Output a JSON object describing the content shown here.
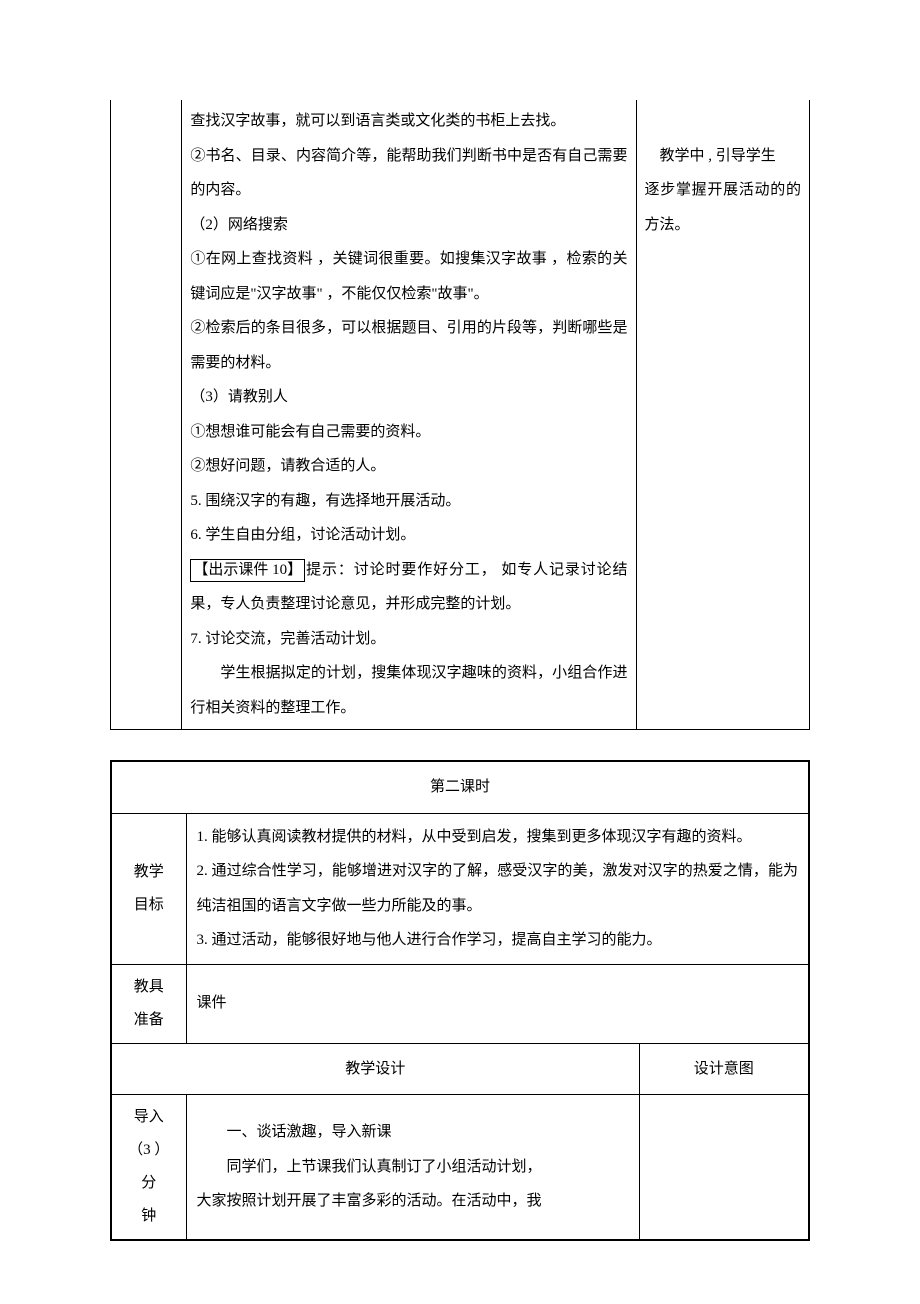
{
  "top_table": {
    "mid_col": {
      "lines": [
        "查找汉字故事，就可以到语言类或文化类的书柜上去找。",
        "②书名、目录、内容简介等，能帮助我们判断书中是否有自己需要的内容。",
        "（2）网络搜索",
        "①在网上查找资料 ，关键词很重要。如搜集汉字故事  ，检索的关键词应是\"汉字故事\"  ，不能仅仅检索\"故事\"。",
        "②检索后的条目很多，可以根据题目、引用的片段等，判断哪些是需要的材料。",
        "（3）请教别人",
        "①想想谁可能会有自己需要的资料。",
        "②想好问题，请教合适的人。",
        "5. 围绕汉字的有趣，有选择地开展活动。",
        "6. 学生自由分组，讨论活动计划。"
      ],
      "boxed_prefix": "【出示课件  10】",
      "after_boxed": "提示：讨论时要作好分工，  如专人记录讨论结果，专人负责整理讨论意见，并形成完整的计划。",
      "line7": "7. 讨论交流，完善活动计划。",
      "indented": "学生根据拟定的计划，搜集体现汉字趣味的资料，小组合作进行相关资料的整理工作。"
    },
    "right_col": {
      "line1_indent": "教学中 , 引导学生",
      "line2": "逐步掌握开展活动的的方法。"
    }
  },
  "bottom_table": {
    "title": "第二课时",
    "row1_label": "教学目标",
    "row1_content": {
      "l1": "1. 能够认真阅读教材提供的材料，从中受到启发，搜集到更多体现汉字有趣的资料。",
      "l2": "2. 通过综合性学习，能够增进对汉字的了解，感受汉字的美，激发对汉字的热爱之情，能为纯洁祖国的语言文字做一些力所能及的事。",
      "l3": "3. 通过活动，能够很好地与他人进行合作学习，提高自主学习的能力。"
    },
    "row2_label": "教具准备",
    "row2_content": "课件",
    "row3_col1": "教学设计",
    "row3_col2": "设计意图",
    "row4_label_l1": "导入",
    "row4_label_l2": "（3  ）分",
    "row4_label_l3": "钟",
    "row4_content_l1": "一、谈话激趣，导入新课",
    "row4_content_l2": "同学们，上节课我们认真制订了小组活动计划，",
    "row4_content_l3": "大家按照计划开展了丰富多彩的活动。在活动中，我"
  }
}
